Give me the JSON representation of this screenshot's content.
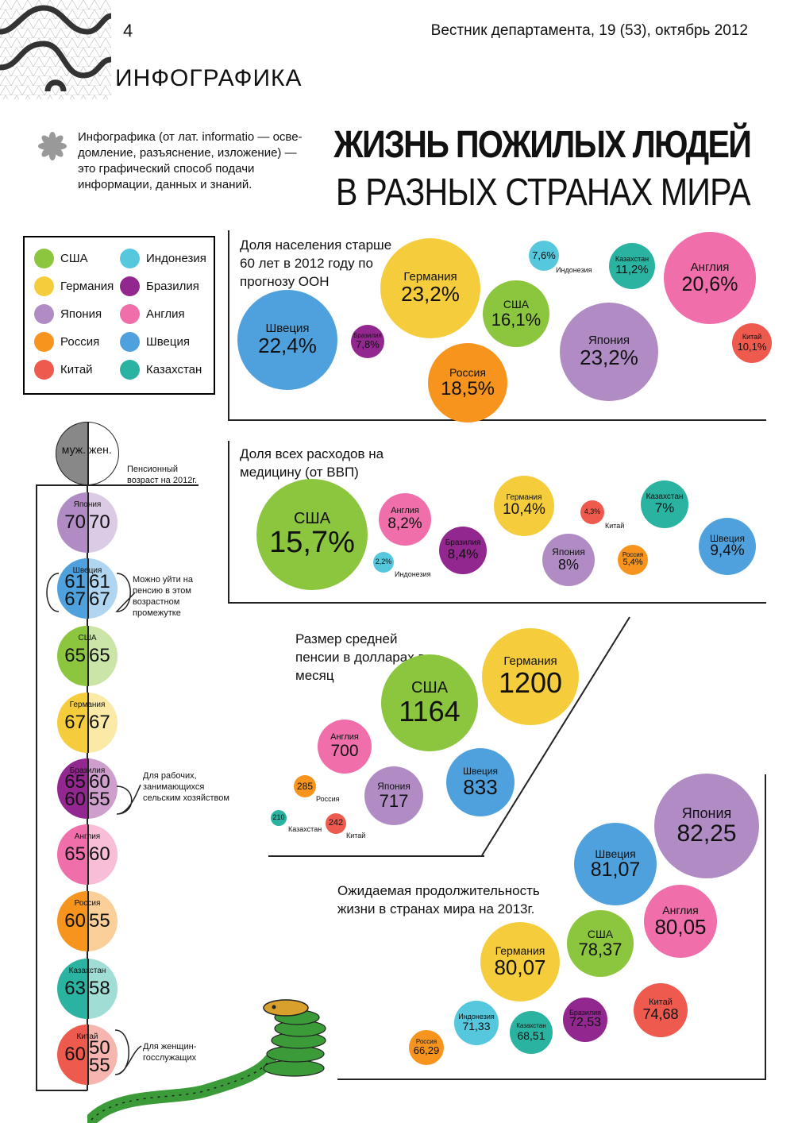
{
  "header": {
    "page_number": "4",
    "journal": "Вестник департамента, 19 (53), октябрь 2012",
    "section": "ИНФОГРАФИКА",
    "intro": "Инфографика (от лат. informatio — осве-домление, разъяснение, изложение) — это графический способ подачи информации, данных и знаний.",
    "title_line1": "ЖИЗНЬ ПОЖИЛЫХ ЛЮДЕЙ",
    "title_line2": "В РАЗНЫХ СТРАНАХ МИРА"
  },
  "colors": {
    "США": "#8cc63f",
    "Германия": "#f5cd3c",
    "Япония": "#b18cc4",
    "Россия": "#f7941d",
    "Китай": "#ee5a4e",
    "Индонезия": "#55c8dd",
    "Бразилия": "#92278f",
    "Англия": "#f06ea9",
    "Швеция": "#4fa1de",
    "Казахстан": "#2bb3a1"
  },
  "legend": {
    "items": [
      "США",
      "Германия",
      "Япония",
      "Россия",
      "Китай",
      "Индонезия",
      "Бразилия",
      "Англия",
      "Швеция",
      "Казахстан"
    ]
  },
  "chart_data": [
    {
      "type": "bubble",
      "title": "Доля населения старше 60 лет в 2012 году по прогнозу ООН",
      "unit": "%",
      "points": [
        {
          "label": "Швеция",
          "value": 22.4,
          "display": "22,4%"
        },
        {
          "label": "Бразилия",
          "value": 7.8,
          "display": "7,8%"
        },
        {
          "label": "Германия",
          "value": 23.2,
          "display": "23,2%"
        },
        {
          "label": "Индонезия",
          "value": 7.6,
          "display": "7,6%"
        },
        {
          "label": "США",
          "value": 16.1,
          "display": "16,1%"
        },
        {
          "label": "Россия",
          "value": 18.5,
          "display": "18,5%"
        },
        {
          "label": "Казахстан",
          "value": 11.2,
          "display": "11,2%"
        },
        {
          "label": "Япония",
          "value": 23.2,
          "display": "23,2%"
        },
        {
          "label": "Англия",
          "value": 20.6,
          "display": "20,6%"
        },
        {
          "label": "Китай",
          "value": 10.1,
          "display": "10,1%"
        }
      ]
    },
    {
      "type": "bubble",
      "title": "Доля всех расходов на медицину (от ВВП)",
      "unit": "%",
      "points": [
        {
          "label": "США",
          "value": 15.7,
          "display": "15,7%"
        },
        {
          "label": "Индонезия",
          "value": 2.2,
          "display": "2,2%"
        },
        {
          "label": "Англия",
          "value": 8.2,
          "display": "8,2%"
        },
        {
          "label": "Бразилия",
          "value": 8.4,
          "display": "8,4%"
        },
        {
          "label": "Германия",
          "value": 10.4,
          "display": "10,4%"
        },
        {
          "label": "Япония",
          "value": 8.0,
          "display": "8%"
        },
        {
          "label": "Китай",
          "value": 4.3,
          "display": "4,3%"
        },
        {
          "label": "Россия",
          "value": 5.4,
          "display": "5,4%"
        },
        {
          "label": "Казахстан",
          "value": 7.0,
          "display": "7%"
        },
        {
          "label": "Швеция",
          "value": 9.4,
          "display": "9,4%"
        }
      ]
    },
    {
      "type": "bubble",
      "title": "Размер средней пенсии в долларах в месяц",
      "unit": "USD",
      "points": [
        {
          "label": "Германия",
          "value": 1200,
          "display": "1200"
        },
        {
          "label": "США",
          "value": 1164,
          "display": "1164"
        },
        {
          "label": "Англия",
          "value": 700,
          "display": "700"
        },
        {
          "label": "Швеция",
          "value": 833,
          "display": "833"
        },
        {
          "label": "Япония",
          "value": 717,
          "display": "717"
        },
        {
          "label": "Россия",
          "value": 285,
          "display": "285"
        },
        {
          "label": "Казахстан",
          "value": 210,
          "display": "210"
        },
        {
          "label": "Китай",
          "value": 242,
          "display": "242"
        }
      ]
    },
    {
      "type": "bubble",
      "title": "Ожидаемая продолжительность жизни в странах мира на 2013г.",
      "unit": "years",
      "points": [
        {
          "label": "Япония",
          "value": 82.25,
          "display": "82,25"
        },
        {
          "label": "Швеция",
          "value": 81.07,
          "display": "81,07"
        },
        {
          "label": "Англия",
          "value": 80.05,
          "display": "80,05"
        },
        {
          "label": "США",
          "value": 78.37,
          "display": "78,37"
        },
        {
          "label": "Германия",
          "value": 80.07,
          "display": "80,07"
        },
        {
          "label": "Китай",
          "value": 74.68,
          "display": "74,68"
        },
        {
          "label": "Бразилия",
          "value": 72.53,
          "display": "72,53"
        },
        {
          "label": "Индонезия",
          "value": 71.33,
          "display": "71,33"
        },
        {
          "label": "Казахстан",
          "value": 68.51,
          "display": "68,51"
        },
        {
          "label": "Россия",
          "value": 66.29,
          "display": "66,29"
        }
      ]
    },
    {
      "type": "split-circle",
      "title": "Пенсионный возраст на 2012г.",
      "header_labels": {
        "male": "муж.",
        "female": "жен."
      },
      "rows": [
        {
          "label": "Япония",
          "male": [
            "70"
          ],
          "female": [
            "70"
          ]
        },
        {
          "label": "Швеция",
          "male": [
            "61",
            "67"
          ],
          "female": [
            "61",
            "67"
          ]
        },
        {
          "label": "США",
          "male": [
            "65"
          ],
          "female": [
            "65"
          ]
        },
        {
          "label": "Германия",
          "male": [
            "67"
          ],
          "female": [
            "67"
          ]
        },
        {
          "label": "Бразилия",
          "male": [
            "65",
            "60"
          ],
          "female": [
            "60",
            "55"
          ]
        },
        {
          "label": "Англия",
          "male": [
            "65"
          ],
          "female": [
            "60"
          ]
        },
        {
          "label": "Россия",
          "male": [
            "60"
          ],
          "female": [
            "55"
          ]
        },
        {
          "label": "Казахстан",
          "male": [
            "63"
          ],
          "female": [
            "58"
          ]
        },
        {
          "label": "Китай",
          "male": [
            "60"
          ],
          "female": [
            "50",
            "55"
          ]
        }
      ],
      "notes": {
        "sweden": "Можно уйти на пенсию в этом возрастном промежутке",
        "brazil": "Для рабочих, занимающихся сельским хозяйством",
        "china": "Для женщин-госслужащих"
      }
    }
  ]
}
